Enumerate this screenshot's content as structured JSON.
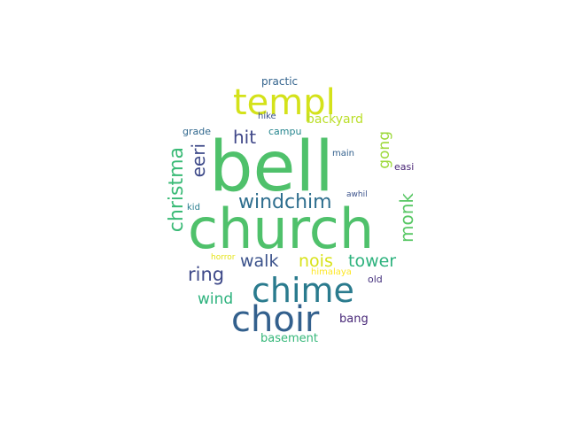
{
  "words": [
    {
      "text": "bell",
      "color": "#4fc16b"
    },
    {
      "text": "church",
      "color": "#4fc16b"
    },
    {
      "text": "chime",
      "color": "#2a7b8e"
    },
    {
      "text": "choir",
      "color": "#33608d"
    },
    {
      "text": "templ",
      "color": "#d4e21a"
    },
    {
      "text": "windchim",
      "color": "#2e6e8e"
    },
    {
      "text": "christma",
      "color": "#3aba76"
    },
    {
      "text": "eeri",
      "color": "#3e4a89"
    },
    {
      "text": "monk",
      "color": "#58c765"
    },
    {
      "text": "walk",
      "color": "#3b528b"
    },
    {
      "text": "nois",
      "color": "#d8e219"
    },
    {
      "text": "tower",
      "color": "#2db27d"
    },
    {
      "text": "ring",
      "color": "#3e4989"
    },
    {
      "text": "hit",
      "color": "#3f4788"
    },
    {
      "text": "gong",
      "color": "#9dd93b"
    },
    {
      "text": "wind",
      "color": "#2db27d"
    },
    {
      "text": "backyard",
      "color": "#bade28"
    },
    {
      "text": "basement",
      "color": "#35b779"
    },
    {
      "text": "practic",
      "color": "#33638d"
    },
    {
      "text": "campu",
      "color": "#25858e"
    },
    {
      "text": "hike",
      "color": "#3b528b"
    },
    {
      "text": "grade",
      "color": "#31688e"
    },
    {
      "text": "main",
      "color": "#34618d"
    },
    {
      "text": "easi",
      "color": "#482475"
    },
    {
      "text": "awhil",
      "color": "#3b528b"
    },
    {
      "text": "kid",
      "color": "#287d8e"
    },
    {
      "text": "horror",
      "color": "#e5e419"
    },
    {
      "text": "himalaya",
      "color": "#fde725"
    },
    {
      "text": "old",
      "color": "#46327e"
    },
    {
      "text": "bang",
      "color": "#482878"
    }
  ]
}
